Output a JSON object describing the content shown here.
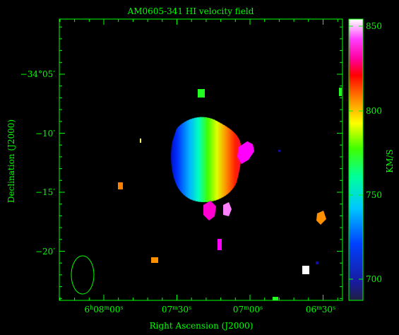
{
  "title": "AM0605-341   HI velocity field",
  "xlabel": "Right Ascension (J2000)",
  "ylabel": "Declination (J2000)",
  "colorbar": {
    "label": "KM/S",
    "ticks": [
      "850",
      "800",
      "750",
      "700"
    ]
  },
  "ra_ticks": [
    {
      "h": "6",
      "m": "08",
      "s": "00"
    },
    {
      "h": "",
      "m": "07",
      "s": "30"
    },
    {
      "h": "",
      "m": "07",
      "s": "00"
    },
    {
      "h": "",
      "m": "06",
      "s": "30"
    }
  ],
  "dec_ticks": [
    {
      "text": "−34°05′"
    },
    {
      "text": "−10′"
    },
    {
      "text": "−15′"
    },
    {
      "text": "−20′"
    }
  ],
  "colors": {
    "axes": "#00ff00",
    "background": "#000000"
  }
}
